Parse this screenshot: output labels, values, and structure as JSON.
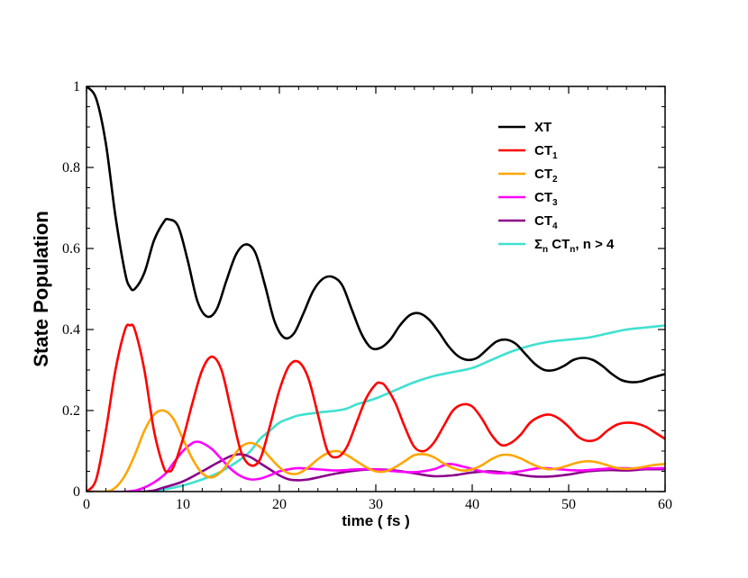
{
  "chart_data": {
    "type": "line",
    "xlabel": "time ( fs )",
    "ylabel": "State Population",
    "xlim": [
      0,
      60
    ],
    "ylim": [
      0,
      1
    ],
    "xticks": [
      0,
      10,
      20,
      30,
      40,
      50,
      60
    ],
    "yticks": [
      0,
      0.2,
      0.4,
      0.6,
      0.8,
      1
    ],
    "ytick_labels": [
      "0",
      "0.2",
      "0.4",
      "0.6",
      "0.8",
      "1"
    ],
    "grid": false,
    "legend_position": "top-right",
    "series": [
      {
        "name": "XT",
        "label_main": "XT",
        "label_sub": "",
        "label_rest": "",
        "color": "#000000",
        "points": [
          [
            0,
            1.0
          ],
          [
            1,
            0.97
          ],
          [
            2,
            0.86
          ],
          [
            3,
            0.68
          ],
          [
            4,
            0.54
          ],
          [
            4.5,
            0.505
          ],
          [
            5,
            0.5
          ],
          [
            6,
            0.54
          ],
          [
            7,
            0.62
          ],
          [
            8,
            0.665
          ],
          [
            8.5,
            0.672
          ],
          [
            9.5,
            0.655
          ],
          [
            10.5,
            0.57
          ],
          [
            11.5,
            0.47
          ],
          [
            12.5,
            0.432
          ],
          [
            13.5,
            0.45
          ],
          [
            14.5,
            0.52
          ],
          [
            15.5,
            0.585
          ],
          [
            16.5,
            0.61
          ],
          [
            17.5,
            0.59
          ],
          [
            18.5,
            0.51
          ],
          [
            19.5,
            0.42
          ],
          [
            20.5,
            0.38
          ],
          [
            21.5,
            0.39
          ],
          [
            22.5,
            0.44
          ],
          [
            23.5,
            0.495
          ],
          [
            24.5,
            0.525
          ],
          [
            25.5,
            0.53
          ],
          [
            26.5,
            0.51
          ],
          [
            27.5,
            0.45
          ],
          [
            28.5,
            0.39
          ],
          [
            29.5,
            0.355
          ],
          [
            30.5,
            0.355
          ],
          [
            31.5,
            0.375
          ],
          [
            32.5,
            0.41
          ],
          [
            33.5,
            0.435
          ],
          [
            34.5,
            0.44
          ],
          [
            35.5,
            0.425
          ],
          [
            36.5,
            0.395
          ],
          [
            37.5,
            0.36
          ],
          [
            38.5,
            0.335
          ],
          [
            39.5,
            0.325
          ],
          [
            40.5,
            0.33
          ],
          [
            41.5,
            0.35
          ],
          [
            42.5,
            0.37
          ],
          [
            43.5,
            0.375
          ],
          [
            44.5,
            0.365
          ],
          [
            45.5,
            0.34
          ],
          [
            46.5,
            0.315
          ],
          [
            47.5,
            0.3
          ],
          [
            48.5,
            0.3
          ],
          [
            49.5,
            0.31
          ],
          [
            50.5,
            0.325
          ],
          [
            51.5,
            0.33
          ],
          [
            52.5,
            0.325
          ],
          [
            53.5,
            0.31
          ],
          [
            54.5,
            0.29
          ],
          [
            55.5,
            0.275
          ],
          [
            56.5,
            0.27
          ],
          [
            57.5,
            0.272
          ],
          [
            58.5,
            0.28
          ],
          [
            60,
            0.29
          ]
        ]
      },
      {
        "name": "CT1",
        "label_main": "CT",
        "label_sub": "1",
        "label_rest": "",
        "color": "#ff0000",
        "points": [
          [
            0,
            0
          ],
          [
            1,
            0.03
          ],
          [
            2,
            0.15
          ],
          [
            3,
            0.3
          ],
          [
            4,
            0.4
          ],
          [
            4.5,
            0.41
          ],
          [
            5,
            0.4
          ],
          [
            6,
            0.3
          ],
          [
            7,
            0.15
          ],
          [
            8,
            0.06
          ],
          [
            8.5,
            0.05
          ],
          [
            9,
            0.06
          ],
          [
            10,
            0.13
          ],
          [
            11,
            0.22
          ],
          [
            12,
            0.3
          ],
          [
            13,
            0.333
          ],
          [
            14,
            0.3
          ],
          [
            15,
            0.2
          ],
          [
            16,
            0.1
          ],
          [
            17,
            0.065
          ],
          [
            18,
            0.08
          ],
          [
            19,
            0.16
          ],
          [
            20,
            0.25
          ],
          [
            21,
            0.31
          ],
          [
            22,
            0.32
          ],
          [
            23,
            0.28
          ],
          [
            24,
            0.19
          ],
          [
            25,
            0.1
          ],
          [
            26,
            0.085
          ],
          [
            27,
            0.11
          ],
          [
            28,
            0.17
          ],
          [
            29,
            0.23
          ],
          [
            30,
            0.265
          ],
          [
            30.5,
            0.268
          ],
          [
            31,
            0.26
          ],
          [
            32,
            0.22
          ],
          [
            33,
            0.16
          ],
          [
            34,
            0.11
          ],
          [
            35,
            0.1
          ],
          [
            36,
            0.12
          ],
          [
            37,
            0.16
          ],
          [
            38,
            0.2
          ],
          [
            39,
            0.215
          ],
          [
            40,
            0.21
          ],
          [
            41,
            0.18
          ],
          [
            42,
            0.14
          ],
          [
            43,
            0.115
          ],
          [
            44,
            0.12
          ],
          [
            45,
            0.14
          ],
          [
            46,
            0.17
          ],
          [
            47,
            0.185
          ],
          [
            48,
            0.19
          ],
          [
            49,
            0.18
          ],
          [
            50,
            0.16
          ],
          [
            51,
            0.135
          ],
          [
            52,
            0.125
          ],
          [
            53,
            0.13
          ],
          [
            54,
            0.15
          ],
          [
            55,
            0.165
          ],
          [
            56,
            0.17
          ],
          [
            57,
            0.168
          ],
          [
            58,
            0.16
          ],
          [
            59,
            0.145
          ],
          [
            60,
            0.13
          ]
        ]
      },
      {
        "name": "CT2",
        "label_main": "CT",
        "label_sub": "2",
        "label_rest": "",
        "color": "#ffa500",
        "points": [
          [
            0,
            0
          ],
          [
            2,
            0
          ],
          [
            3,
            0.01
          ],
          [
            4,
            0.04
          ],
          [
            5,
            0.09
          ],
          [
            6,
            0.15
          ],
          [
            7,
            0.19
          ],
          [
            8,
            0.2
          ],
          [
            9,
            0.18
          ],
          [
            10,
            0.13
          ],
          [
            11,
            0.08
          ],
          [
            12,
            0.045
          ],
          [
            13,
            0.035
          ],
          [
            14,
            0.05
          ],
          [
            15,
            0.08
          ],
          [
            16,
            0.11
          ],
          [
            17,
            0.12
          ],
          [
            18,
            0.11
          ],
          [
            19,
            0.085
          ],
          [
            20,
            0.06
          ],
          [
            21,
            0.045
          ],
          [
            22,
            0.045
          ],
          [
            23,
            0.06
          ],
          [
            24,
            0.08
          ],
          [
            25,
            0.095
          ],
          [
            26,
            0.1
          ],
          [
            27,
            0.09
          ],
          [
            28,
            0.075
          ],
          [
            29,
            0.06
          ],
          [
            30,
            0.05
          ],
          [
            31,
            0.05
          ],
          [
            32,
            0.06
          ],
          [
            33,
            0.075
          ],
          [
            34,
            0.09
          ],
          [
            35,
            0.092
          ],
          [
            36,
            0.085
          ],
          [
            37,
            0.07
          ],
          [
            38,
            0.058
          ],
          [
            39,
            0.052
          ],
          [
            40,
            0.055
          ],
          [
            41,
            0.065
          ],
          [
            42,
            0.08
          ],
          [
            43,
            0.09
          ],
          [
            44,
            0.09
          ],
          [
            45,
            0.082
          ],
          [
            46,
            0.07
          ],
          [
            47,
            0.06
          ],
          [
            48,
            0.055
          ],
          [
            49,
            0.058
          ],
          [
            50,
            0.065
          ],
          [
            51,
            0.072
          ],
          [
            52,
            0.075
          ],
          [
            53,
            0.072
          ],
          [
            54,
            0.065
          ],
          [
            55,
            0.058
          ],
          [
            56,
            0.056
          ],
          [
            57,
            0.058
          ],
          [
            58,
            0.062
          ],
          [
            59,
            0.066
          ],
          [
            60,
            0.068
          ]
        ]
      },
      {
        "name": "CT3",
        "label_main": "CT",
        "label_sub": "3",
        "label_rest": "",
        "color": "#ff00ff",
        "points": [
          [
            0,
            0
          ],
          [
            4,
            0
          ],
          [
            6,
            0.01
          ],
          [
            8,
            0.04
          ],
          [
            9,
            0.07
          ],
          [
            10,
            0.1
          ],
          [
            11,
            0.12
          ],
          [
            11.5,
            0.123
          ],
          [
            12,
            0.12
          ],
          [
            13,
            0.105
          ],
          [
            14,
            0.08
          ],
          [
            15,
            0.055
          ],
          [
            16,
            0.038
          ],
          [
            17,
            0.03
          ],
          [
            18,
            0.032
          ],
          [
            19,
            0.04
          ],
          [
            20,
            0.05
          ],
          [
            21,
            0.055
          ],
          [
            22,
            0.058
          ],
          [
            24,
            0.055
          ],
          [
            26,
            0.052
          ],
          [
            28,
            0.055
          ],
          [
            30,
            0.055
          ],
          [
            32,
            0.05
          ],
          [
            34,
            0.048
          ],
          [
            36,
            0.055
          ],
          [
            37.5,
            0.068
          ],
          [
            39,
            0.062
          ],
          [
            41,
            0.05
          ],
          [
            43,
            0.045
          ],
          [
            45,
            0.05
          ],
          [
            47,
            0.058
          ],
          [
            49,
            0.055
          ],
          [
            51,
            0.052
          ],
          [
            53,
            0.055
          ],
          [
            55,
            0.058
          ],
          [
            57,
            0.057
          ],
          [
            60,
            0.058
          ]
        ]
      },
      {
        "name": "CT4",
        "label_main": "CT",
        "label_sub": "4",
        "label_rest": "",
        "color": "#8b008b",
        "points": [
          [
            0,
            0
          ],
          [
            6,
            0
          ],
          [
            8,
            0.01
          ],
          [
            10,
            0.025
          ],
          [
            12,
            0.05
          ],
          [
            13.5,
            0.07
          ],
          [
            15,
            0.088
          ],
          [
            16,
            0.092
          ],
          [
            17,
            0.085
          ],
          [
            18,
            0.07
          ],
          [
            19,
            0.055
          ],
          [
            20,
            0.04
          ],
          [
            21,
            0.03
          ],
          [
            22,
            0.028
          ],
          [
            23,
            0.03
          ],
          [
            24,
            0.035
          ],
          [
            26,
            0.045
          ],
          [
            28,
            0.052
          ],
          [
            30,
            0.055
          ],
          [
            32,
            0.052
          ],
          [
            34,
            0.045
          ],
          [
            36,
            0.038
          ],
          [
            38,
            0.04
          ],
          [
            40,
            0.047
          ],
          [
            42,
            0.05
          ],
          [
            44,
            0.045
          ],
          [
            46,
            0.038
          ],
          [
            48,
            0.037
          ],
          [
            50,
            0.042
          ],
          [
            52,
            0.05
          ],
          [
            54,
            0.053
          ],
          [
            56,
            0.052
          ],
          [
            58,
            0.055
          ],
          [
            60,
            0.055
          ]
        ]
      },
      {
        "name": "Sigma_n CT_n, n > 4",
        "label_main": "Σ",
        "label_sub": "n",
        "label_rest": " CT",
        "label_sub2": "n",
        "label_tail": ", n > 4",
        "color": "#40e0d0",
        "points": [
          [
            0,
            0
          ],
          [
            6,
            0
          ],
          [
            8,
            0.005
          ],
          [
            10,
            0.015
          ],
          [
            12,
            0.03
          ],
          [
            14,
            0.05
          ],
          [
            16,
            0.08
          ],
          [
            17,
            0.1
          ],
          [
            18,
            0.13
          ],
          [
            19,
            0.15
          ],
          [
            20,
            0.17
          ],
          [
            21,
            0.18
          ],
          [
            22,
            0.188
          ],
          [
            24,
            0.195
          ],
          [
            26,
            0.2
          ],
          [
            27,
            0.205
          ],
          [
            28,
            0.215
          ],
          [
            30,
            0.23
          ],
          [
            32,
            0.25
          ],
          [
            34,
            0.27
          ],
          [
            36,
            0.285
          ],
          [
            38,
            0.295
          ],
          [
            40,
            0.305
          ],
          [
            42,
            0.325
          ],
          [
            44,
            0.345
          ],
          [
            46,
            0.36
          ],
          [
            48,
            0.37
          ],
          [
            50,
            0.375
          ],
          [
            52,
            0.38
          ],
          [
            54,
            0.39
          ],
          [
            56,
            0.4
          ],
          [
            58,
            0.405
          ],
          [
            60,
            0.41
          ]
        ]
      }
    ]
  }
}
